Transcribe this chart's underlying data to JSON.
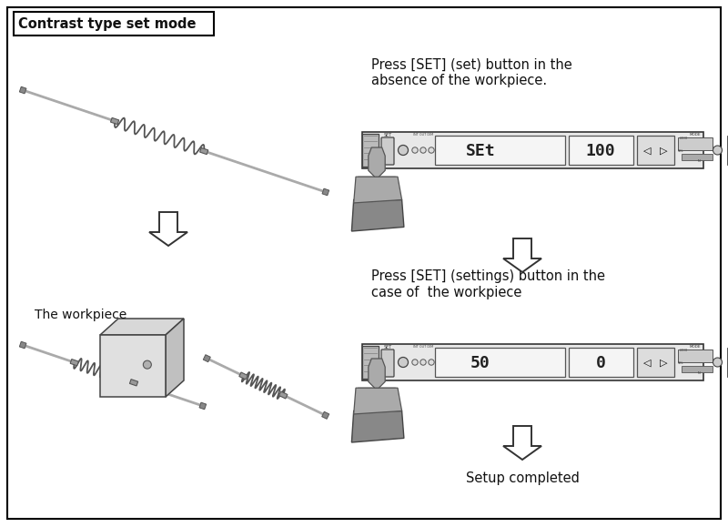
{
  "title": "Contrast type set mode",
  "bg_color": "#ffffff",
  "border_color": "#000000",
  "text_color": "#111111",
  "text1": "Press [SET] (set) button in the",
  "text1b": "absence of the workpiece.",
  "text2": "Press [SET] (settings) button in the",
  "text2b": "case of  the workpiece",
  "text3": "The workpiece",
  "text4": "Setup completed",
  "display1_left": "SEt",
  "display1_right": "100",
  "display2_left": "50",
  "display2_right": "0",
  "sensor_color": "#aaaaaa",
  "coil_color": "#666666",
  "connector_color": "#888888",
  "device_body": "#f2f2f2",
  "device_border": "#444444",
  "hand_color": "#999999",
  "hand_dark": "#777777",
  "arrow_fill": "#ffffff",
  "arrow_border": "#333333"
}
